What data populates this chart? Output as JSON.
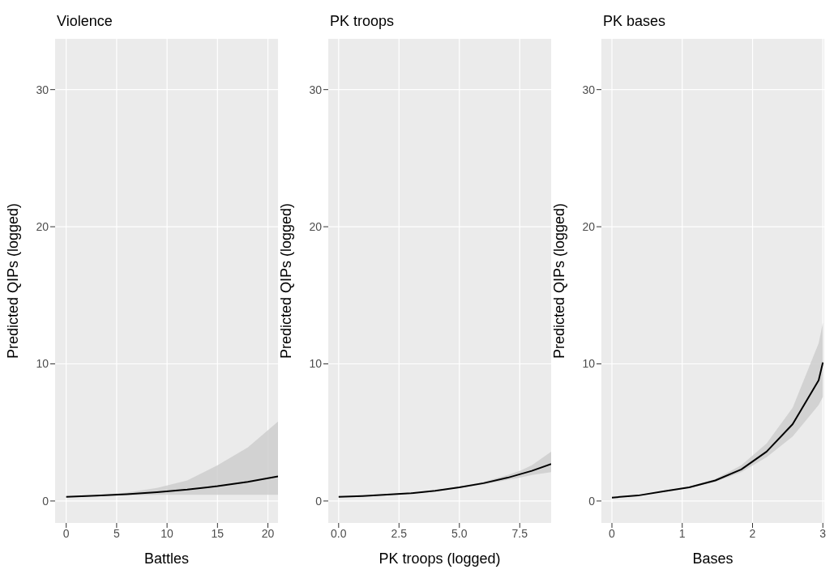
{
  "chart_data": [
    {
      "type": "line",
      "title": "Violence",
      "xlabel": "Battles",
      "ylabel": "Predicted QIPs (logged)",
      "xlim": [
        -1.1,
        21
      ],
      "xticks": [
        0,
        5,
        10,
        15,
        20
      ],
      "ylim": [
        -1.6,
        33.7
      ],
      "yticks": [
        0,
        10,
        20,
        30
      ],
      "grid": true,
      "series": [
        {
          "color": "#000000",
          "x": [
            0,
            3,
            6,
            9,
            12,
            15,
            18,
            21
          ],
          "values": [
            0.3,
            0.39,
            0.5,
            0.65,
            0.83,
            1.08,
            1.39,
            1.8
          ],
          "lower": [
            0.28,
            0.36,
            0.42,
            0.45,
            0.45,
            0.45,
            0.45,
            0.45
          ],
          "upper": [
            0.32,
            0.42,
            0.62,
            0.95,
            1.5,
            2.6,
            3.9,
            5.8
          ]
        }
      ]
    },
    {
      "type": "line",
      "title": "PK troops",
      "xlabel": "PK troops (logged)",
      "ylabel": "Predicted QIPs (logged)",
      "xlim": [
        -0.43,
        8.8
      ],
      "xticks": [
        {
          "value": 0,
          "label": "0.0"
        },
        2.5,
        {
          "value": 5,
          "label": "5.0"
        },
        7.5
      ],
      "ylim": [
        -1.6,
        33.7
      ],
      "yticks": [
        0,
        10,
        20,
        30
      ],
      "grid": true,
      "series": [
        {
          "color": "#000000",
          "x": [
            0,
            1,
            2,
            3,
            4,
            5,
            6,
            7,
            7.5,
            8,
            8.8
          ],
          "values": [
            0.3,
            0.37,
            0.46,
            0.57,
            0.75,
            1.0,
            1.3,
            1.7,
            1.95,
            2.2,
            2.7
          ],
          "lower": [
            0.3,
            0.37,
            0.46,
            0.56,
            0.72,
            0.95,
            1.2,
            1.55,
            1.7,
            1.9,
            2.1
          ],
          "upper": [
            0.3,
            0.37,
            0.46,
            0.58,
            0.78,
            1.05,
            1.4,
            1.9,
            2.2,
            2.6,
            3.6
          ]
        }
      ]
    },
    {
      "type": "line",
      "title": "PK bases",
      "xlabel": "Bases",
      "ylabel": "Predicted QIPs (logged)",
      "xlim": [
        -0.15,
        3.02
      ],
      "xticks": [
        0,
        1,
        2,
        3
      ],
      "ylim": [
        -1.6,
        33.7
      ],
      "yticks": [
        0,
        10,
        20,
        30
      ],
      "grid": true,
      "series": [
        {
          "color": "#000000",
          "x": [
            0,
            0.37,
            0.73,
            1.1,
            1.47,
            1.84,
            2.2,
            2.57,
            2.94,
            3.0
          ],
          "values": [
            0.25,
            0.4,
            0.7,
            1.0,
            1.5,
            2.3,
            3.6,
            5.6,
            8.8,
            10.1
          ],
          "lower": [
            0.25,
            0.4,
            0.7,
            0.95,
            1.4,
            2.1,
            3.2,
            4.7,
            7.0,
            7.6
          ],
          "upper": [
            0.25,
            0.4,
            0.7,
            1.05,
            1.6,
            2.6,
            4.2,
            6.8,
            11.5,
            13
          ]
        }
      ]
    }
  ]
}
